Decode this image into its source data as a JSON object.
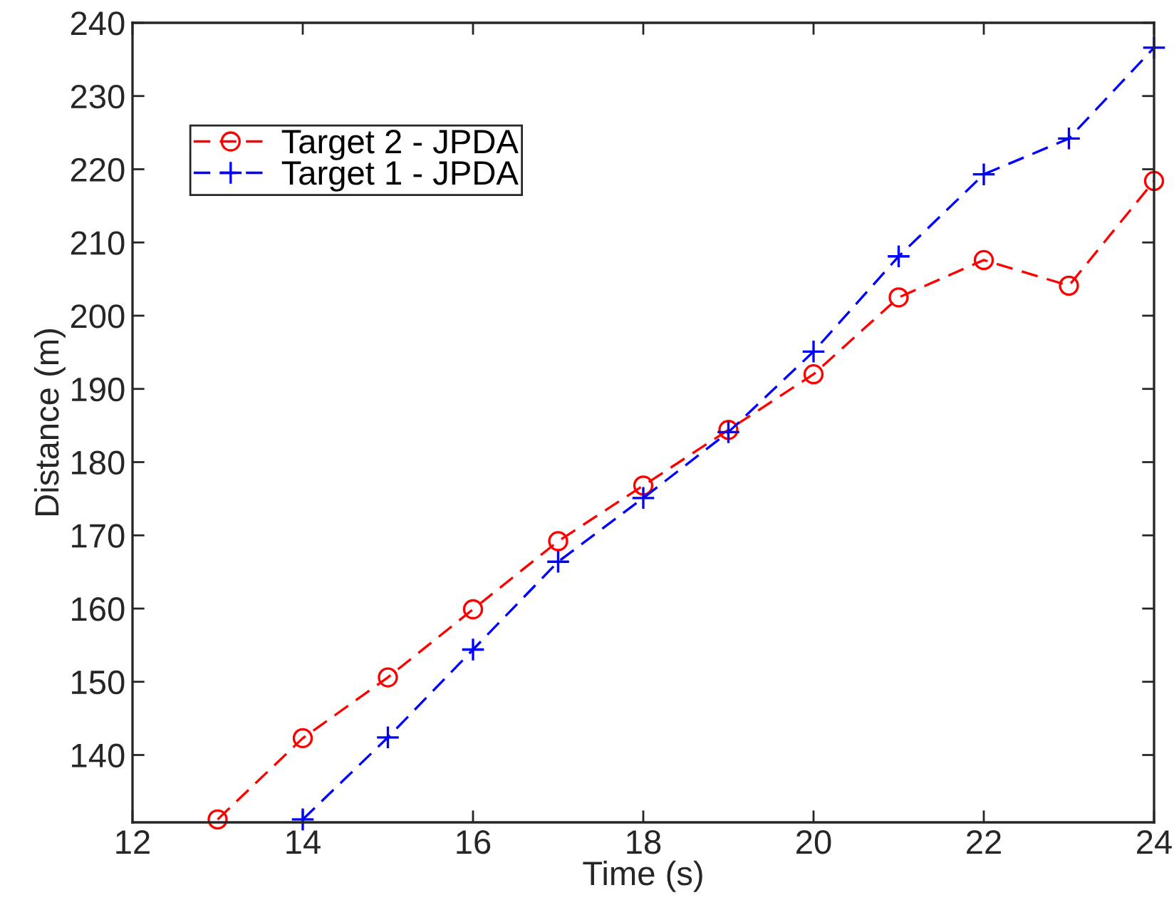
{
  "chart_data": {
    "type": "line",
    "xlabel": "Time (s)",
    "ylabel": "Distance (m)",
    "xlim": [
      12,
      24
    ],
    "xticks": [
      12,
      14,
      16,
      18,
      20,
      22,
      24
    ],
    "ylim": [
      130.8,
      240
    ],
    "yticks": [
      140,
      150,
      160,
      170,
      180,
      190,
      200,
      210,
      220,
      230,
      240
    ],
    "grid": false,
    "legend": "top left",
    "line_style": "dashed",
    "series": [
      {
        "name": "Target 2 - JPDA",
        "color": "#ff0000",
        "marker": "circle",
        "x": [
          13,
          14,
          15,
          16,
          17,
          18,
          19,
          20,
          21,
          22,
          23,
          24
        ],
        "values": [
          131.2,
          142.3,
          150.6,
          159.9,
          169.2,
          176.8,
          184.4,
          192.0,
          202.5,
          207.6,
          204.1,
          218.4
        ]
      },
      {
        "name": "Target 1 - JPDA",
        "color": "#0000ff",
        "marker": "cross",
        "x": [
          14,
          15,
          16,
          17,
          18,
          19,
          20,
          21,
          22,
          23,
          24
        ],
        "values": [
          131.2,
          142.4,
          154.4,
          166.4,
          175.1,
          184.1,
          195.1,
          208.1,
          219.3,
          224.2,
          236.6
        ]
      }
    ]
  }
}
